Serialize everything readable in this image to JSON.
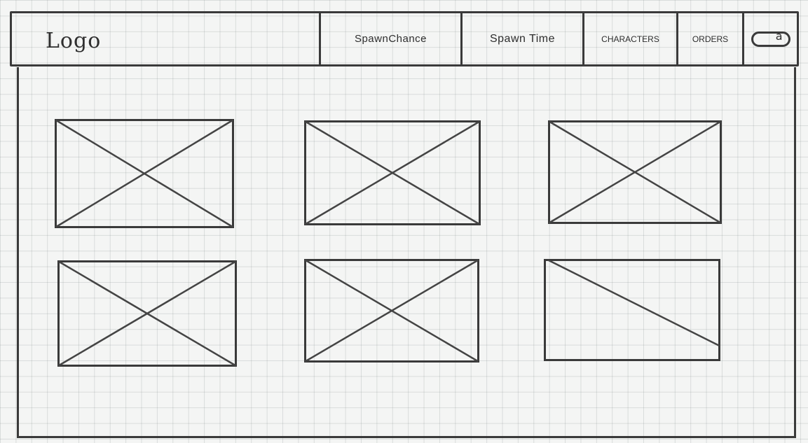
{
  "header": {
    "logo": "Logo",
    "nav": [
      {
        "label": "SpawnChance"
      },
      {
        "label": "Spawn Time"
      },
      {
        "label": "CHARACTERS"
      },
      {
        "label": "ORDERS"
      }
    ],
    "search_icon": "search-icon"
  },
  "gallery": {
    "items": [
      {
        "type": "image-placeholder"
      },
      {
        "type": "image-placeholder"
      },
      {
        "type": "image-placeholder"
      },
      {
        "type": "image-placeholder"
      },
      {
        "type": "image-placeholder"
      },
      {
        "type": "image-placeholder"
      }
    ]
  },
  "colors": {
    "ink": "#3a3a3a",
    "paper": "#f4f5f4"
  }
}
